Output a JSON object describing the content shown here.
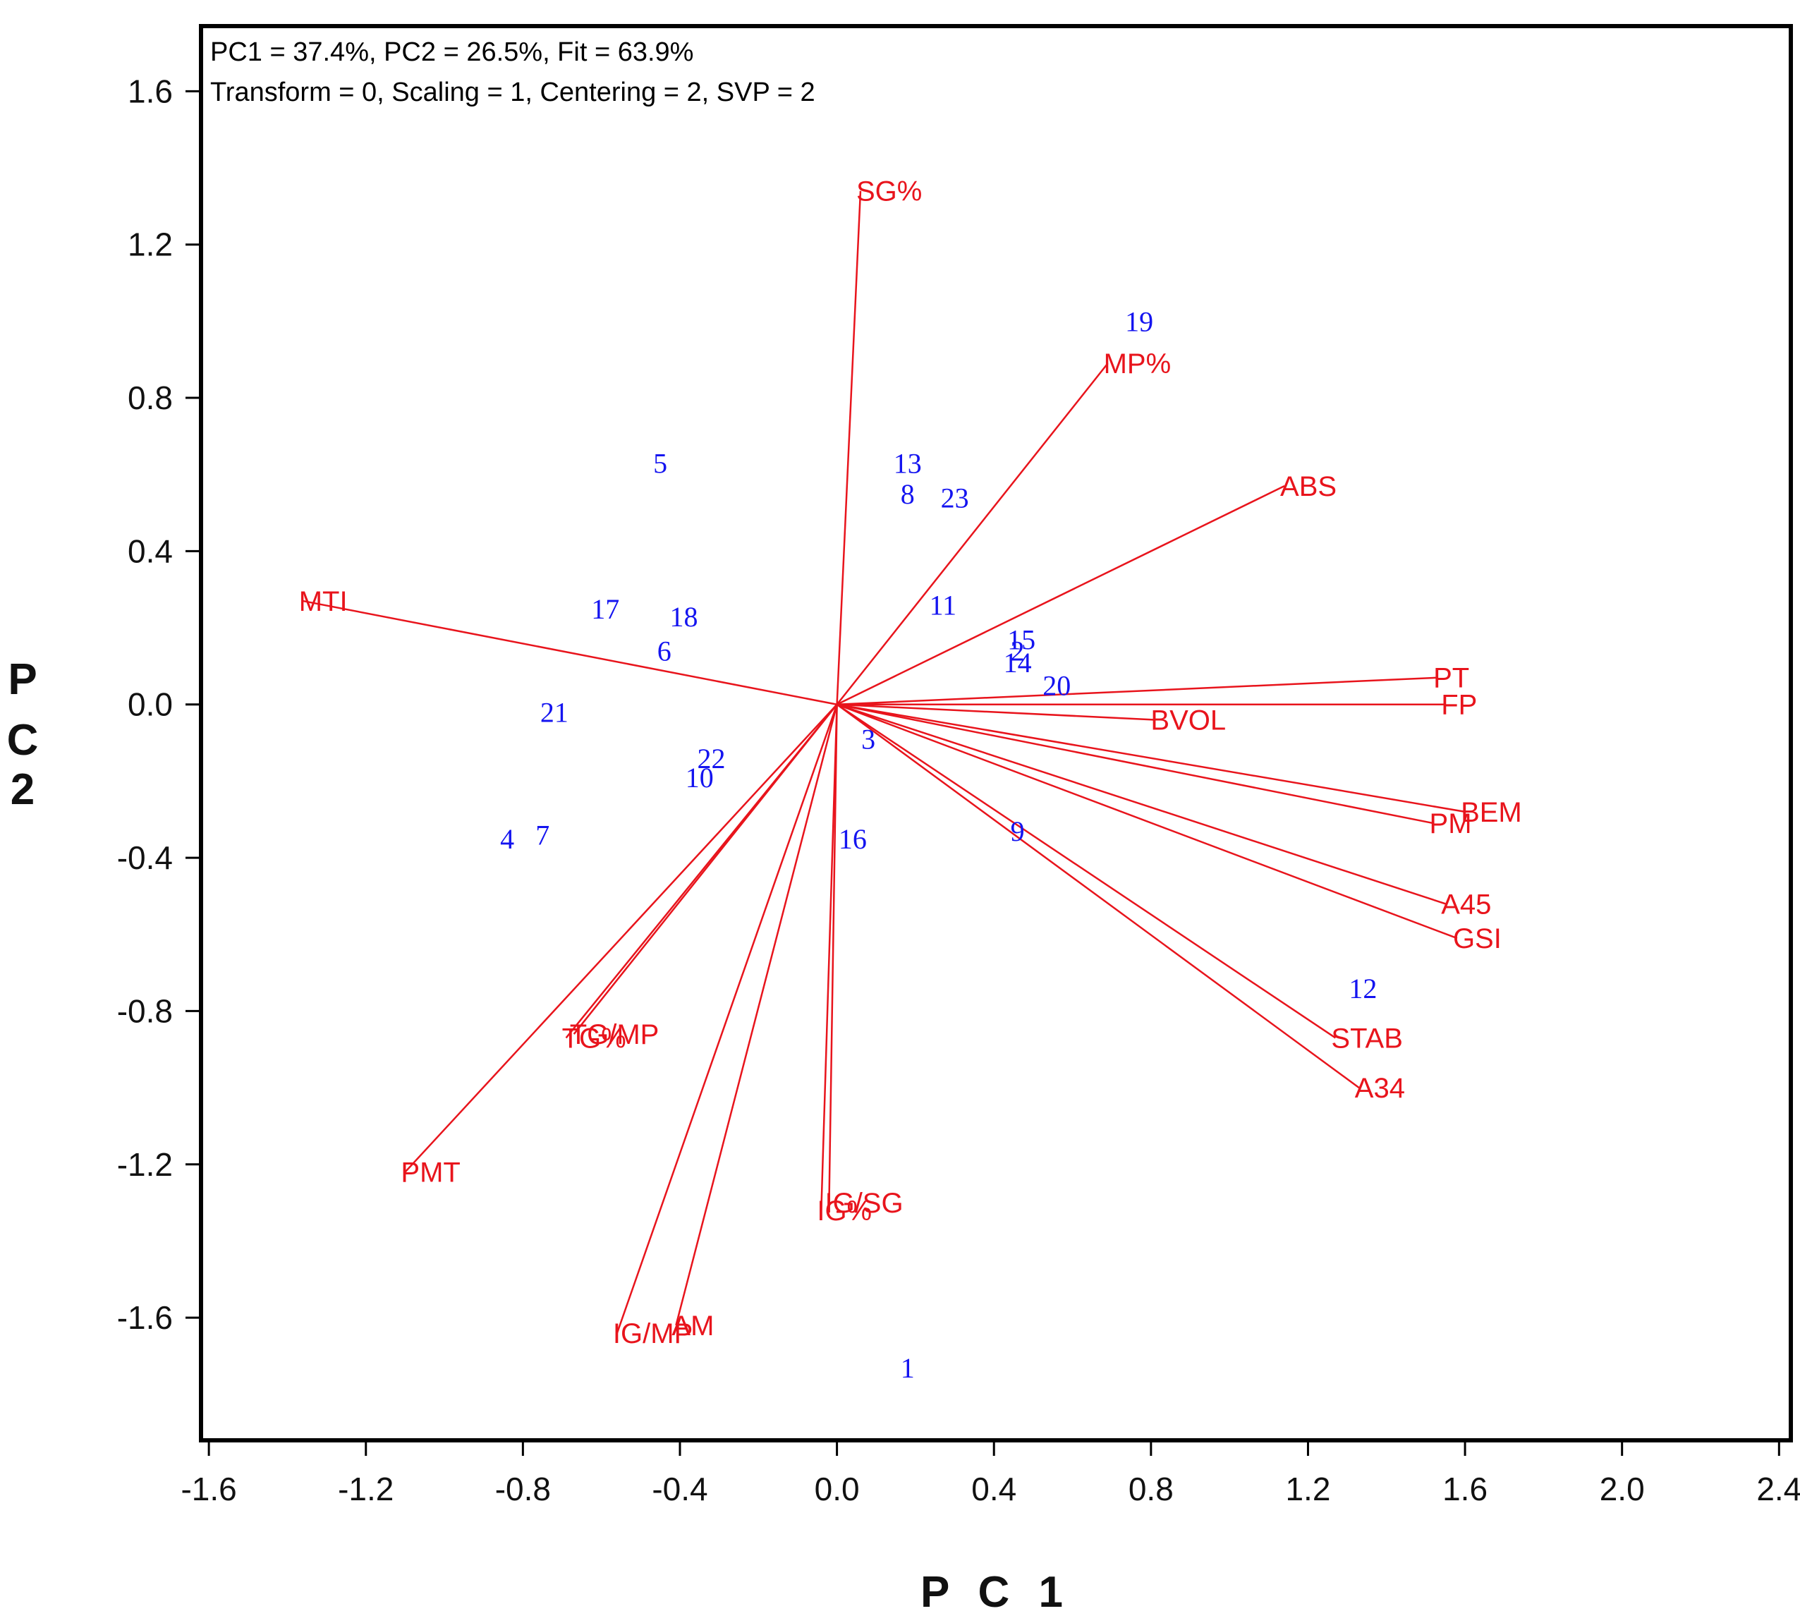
{
  "chart_data": {
    "type": "scatter",
    "subtype": "biplot",
    "info_line_1": "PC1 = 37.4%, PC2 = 26.5%, Fit = 63.9%",
    "info_line_2": "Transform = 0, Scaling = 1, Centering = 2, SVP = 2",
    "xlabel": "P C 1",
    "ylabel_lines": [
      "P",
      "C",
      "2"
    ],
    "xlim": [
      -1.62,
      2.43
    ],
    "ylim": [
      -1.92,
      1.77
    ],
    "x_ticks": [
      -1.6,
      -1.2,
      -0.8,
      -0.4,
      0.0,
      0.4,
      0.8,
      1.2,
      1.6,
      2.0,
      2.4
    ],
    "x_tick_labels": [
      "-1.6",
      "-1.2",
      "-0.8",
      "-0.4",
      "0.0",
      "0.4",
      "0.8",
      "1.2",
      "1.6",
      "2.0",
      "2.4"
    ],
    "y_ticks": [
      1.6,
      1.2,
      0.8,
      0.4,
      0.0,
      -0.4,
      -0.8,
      -1.2,
      -1.6
    ],
    "y_tick_labels": [
      "1.6",
      "1.2",
      "0.8",
      "0.4",
      "0.0",
      "-0.4",
      "-0.8",
      "-1.2",
      "-1.6"
    ],
    "grid": false,
    "vector_color": "#e8141c",
    "point_color": "#1414f0",
    "vectors": [
      {
        "label": "SG%",
        "x": 0.06,
        "y": 1.34
      },
      {
        "label": "MP%",
        "x": 0.69,
        "y": 0.89
      },
      {
        "label": "ABS",
        "x": 1.14,
        "y": 0.57
      },
      {
        "label": "MTI",
        "x": -1.36,
        "y": 0.27
      },
      {
        "label": "PT",
        "x": 1.53,
        "y": 0.07
      },
      {
        "label": "FP",
        "x": 1.55,
        "y": 0.0
      },
      {
        "label": "BVOL",
        "x": 0.81,
        "y": -0.04
      },
      {
        "label": "BEM",
        "x": 1.6,
        "y": -0.28
      },
      {
        "label": "PM",
        "x": 1.52,
        "y": -0.31
      },
      {
        "label": "A45",
        "x": 1.55,
        "y": -0.52
      },
      {
        "label": "GSI",
        "x": 1.58,
        "y": -0.61
      },
      {
        "label": "STAB",
        "x": 1.27,
        "y": -0.87
      },
      {
        "label": "A34",
        "x": 1.33,
        "y": -1.0
      },
      {
        "label": "TG%",
        "x": -0.69,
        "y": -0.87
      },
      {
        "label": "TG/MP",
        "x": -0.67,
        "y": -0.86
      },
      {
        "label": "PMT",
        "x": -1.1,
        "y": -1.22
      },
      {
        "label": "IG%",
        "x": -0.04,
        "y": -1.32
      },
      {
        "label": "IG/SG",
        "x": -0.02,
        "y": -1.3
      },
      {
        "label": "IG/MP",
        "x": -0.56,
        "y": -1.64
      },
      {
        "label": "AM",
        "x": -0.41,
        "y": -1.62
      }
    ],
    "points": [
      {
        "label": "19",
        "x": 0.77,
        "y": 1.0
      },
      {
        "label": "5",
        "x": -0.45,
        "y": 0.63
      },
      {
        "label": "13",
        "x": 0.18,
        "y": 0.63
      },
      {
        "label": "8",
        "x": 0.18,
        "y": 0.55
      },
      {
        "label": "23",
        "x": 0.3,
        "y": 0.54
      },
      {
        "label": "17",
        "x": -0.59,
        "y": 0.25
      },
      {
        "label": "18",
        "x": -0.39,
        "y": 0.23
      },
      {
        "label": "11",
        "x": 0.27,
        "y": 0.26
      },
      {
        "label": "6",
        "x": -0.44,
        "y": 0.14
      },
      {
        "label": "15",
        "x": 0.47,
        "y": 0.17
      },
      {
        "label": "2",
        "x": 0.46,
        "y": 0.14
      },
      {
        "label": "14",
        "x": 0.46,
        "y": 0.11
      },
      {
        "label": "20",
        "x": 0.56,
        "y": 0.05
      },
      {
        "label": "21",
        "x": -0.72,
        "y": -0.02
      },
      {
        "label": "3",
        "x": 0.08,
        "y": -0.09
      },
      {
        "label": "22",
        "x": -0.32,
        "y": -0.14
      },
      {
        "label": "10",
        "x": -0.35,
        "y": -0.19
      },
      {
        "label": "4",
        "x": -0.84,
        "y": -0.35
      },
      {
        "label": "7",
        "x": -0.75,
        "y": -0.34
      },
      {
        "label": "9",
        "x": 0.46,
        "y": -0.33
      },
      {
        "label": "16",
        "x": 0.04,
        "y": -0.35
      },
      {
        "label": "12",
        "x": 1.34,
        "y": -0.74
      },
      {
        "label": "1",
        "x": 0.18,
        "y": -1.73
      }
    ]
  }
}
